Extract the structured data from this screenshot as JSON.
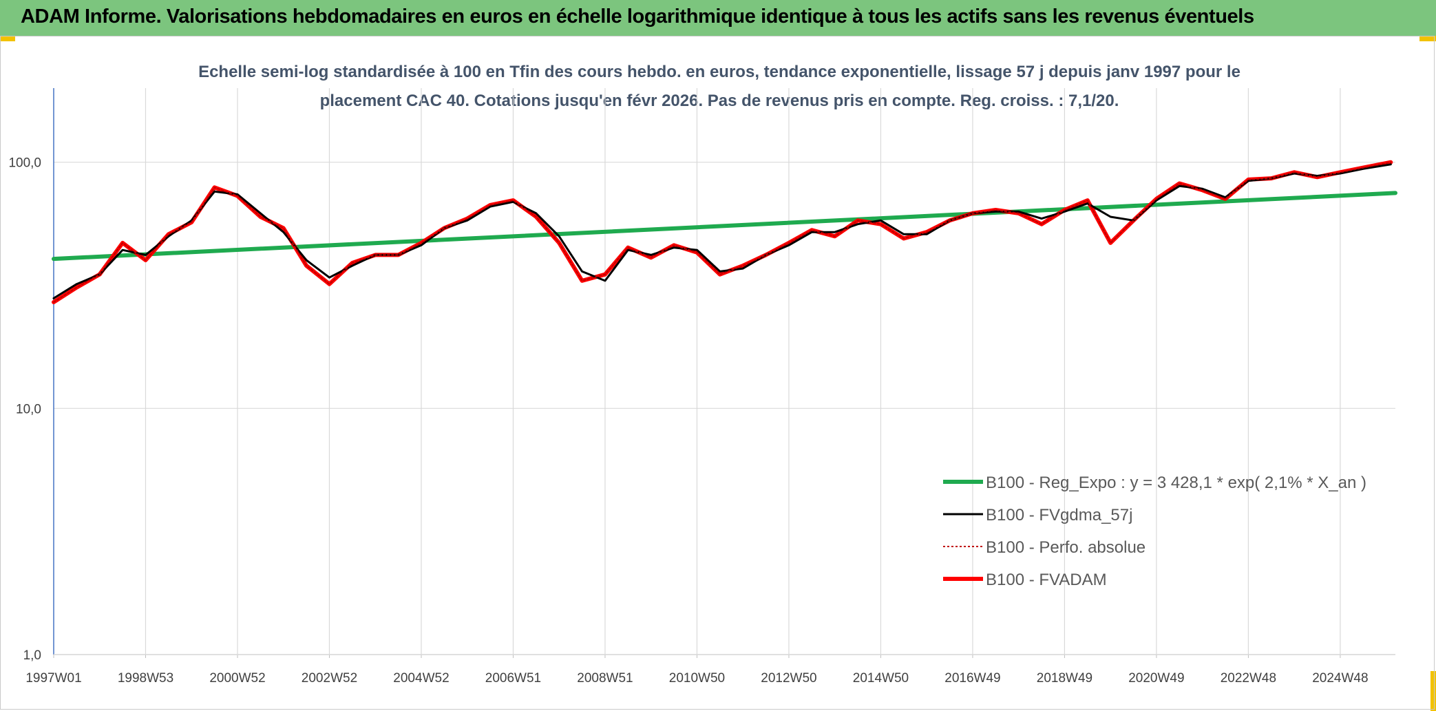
{
  "header": {
    "title": "ADAM Informe. Valorisations hebdomadaires en euros en échelle logarithmique identique à tous les actifs sans les revenus éventuels"
  },
  "chart_data": {
    "type": "line",
    "title_line1": "Echelle semi-log standardisée à 100 en Tfin des cours hebdo. en euros, tendance exponentielle, lissage 57 j depuis janv 1997 pour le",
    "title_line2": "placement CAC 40. Cotations jusqu'en févr 2026. Pas de revenus pris en compte. Reg. croiss. : 7,1/20.",
    "y_scale": "log",
    "ylim": [
      1,
      200
    ],
    "y_ticks": [
      "1,0",
      "10,0",
      "100,0"
    ],
    "x_ticks": [
      "1997W01",
      "1998W53",
      "2000W52",
      "2002W52",
      "2004W52",
      "2006W51",
      "2008W51",
      "2010W50",
      "2012W50",
      "2014W50",
      "2016W49",
      "2018W49",
      "2020W49",
      "2022W48",
      "2024W48"
    ],
    "x_range": [
      1997.0,
      2026.2
    ],
    "grid": true,
    "legend_position": "lower-right",
    "series": [
      {
        "name": "B100 - Reg_Expo : y = 3 428,1 * exp( 2,1% *  X_an )",
        "color": "#1faa4f",
        "style": "solid-thick",
        "x": [
          1997.0,
          2026.2
        ],
        "y": [
          40.5,
          75.0
        ]
      },
      {
        "name": "B100 - FVgdma_57j",
        "color": "#000000",
        "style": "solid",
        "x": [
          1997.0,
          1997.5,
          1998.0,
          1998.5,
          1999.0,
          1999.5,
          2000.0,
          2000.5,
          2001.0,
          2001.5,
          2002.0,
          2002.5,
          2003.0,
          2003.5,
          2004.0,
          2004.5,
          2005.0,
          2005.5,
          2006.0,
          2006.5,
          2007.0,
          2007.5,
          2008.0,
          2008.5,
          2009.0,
          2009.5,
          2010.0,
          2010.5,
          2011.0,
          2011.5,
          2012.0,
          2012.5,
          2013.0,
          2013.5,
          2014.0,
          2014.5,
          2015.0,
          2015.5,
          2016.0,
          2016.5,
          2017.0,
          2017.5,
          2018.0,
          2018.5,
          2019.0,
          2019.5,
          2020.0,
          2020.5,
          2021.0,
          2021.5,
          2022.0,
          2022.5,
          2023.0,
          2023.5,
          2024.0,
          2024.5,
          2025.0,
          2025.5,
          2026.1
        ],
        "y": [
          28,
          32,
          35,
          44,
          42,
          50,
          58,
          76,
          74,
          62,
          52,
          40,
          34,
          38,
          42,
          42,
          46,
          54,
          58,
          66,
          69,
          62,
          50,
          36,
          33,
          44,
          42,
          45,
          44,
          36,
          37,
          42,
          46,
          52,
          52,
          56,
          58,
          51,
          51,
          58,
          62,
          63,
          63,
          59,
          63,
          68,
          60,
          58,
          70,
          80,
          78,
          72,
          84,
          86,
          90,
          88,
          90,
          94,
          98
        ]
      },
      {
        "name": "B100 - Perfo. absolue",
        "color": "#c00000",
        "style": "dotted",
        "x": [
          1997.0,
          1997.5,
          1998.0,
          1998.5,
          1999.0,
          1999.5,
          2000.0,
          2000.5,
          2001.0,
          2001.5,
          2002.0,
          2002.5,
          2003.0,
          2003.5,
          2004.0,
          2004.5,
          2005.0,
          2005.5,
          2006.0,
          2006.5,
          2007.0,
          2007.5,
          2008.0,
          2008.5,
          2009.0,
          2009.5,
          2010.0,
          2010.5,
          2011.0,
          2011.5,
          2012.0,
          2012.5,
          2013.0,
          2013.5,
          2014.0,
          2014.5,
          2015.0,
          2015.5,
          2016.0,
          2016.5,
          2017.0,
          2017.5,
          2018.0,
          2018.5,
          2019.0,
          2019.5,
          2020.0,
          2020.5,
          2021.0,
          2021.5,
          2022.0,
          2022.5,
          2023.0,
          2023.5,
          2024.0,
          2024.5,
          2025.0,
          2025.5,
          2026.1
        ],
        "y": [
          27,
          31,
          35,
          47,
          40,
          51,
          57,
          79,
          73,
          60,
          54,
          38,
          32,
          39,
          42,
          42,
          47,
          54,
          59,
          67,
          70,
          60,
          47,
          33,
          35,
          45,
          41,
          46,
          43,
          35,
          38,
          42,
          47,
          53,
          50,
          58,
          56,
          49,
          52,
          58,
          62,
          64,
          62,
          56,
          64,
          70,
          47,
          58,
          71,
          82,
          77,
          71,
          85,
          86,
          91,
          87,
          91,
          95,
          100
        ]
      },
      {
        "name": "B100 - FVADAM",
        "color": "#ff0000",
        "style": "solid-thick",
        "x": [
          1997.0,
          1997.5,
          1998.0,
          1998.5,
          1999.0,
          1999.5,
          2000.0,
          2000.5,
          2001.0,
          2001.5,
          2002.0,
          2002.5,
          2003.0,
          2003.5,
          2004.0,
          2004.5,
          2005.0,
          2005.5,
          2006.0,
          2006.5,
          2007.0,
          2007.5,
          2008.0,
          2008.5,
          2009.0,
          2009.5,
          2010.0,
          2010.5,
          2011.0,
          2011.5,
          2012.0,
          2012.5,
          2013.0,
          2013.5,
          2014.0,
          2014.5,
          2015.0,
          2015.5,
          2016.0,
          2016.5,
          2017.0,
          2017.5,
          2018.0,
          2018.5,
          2019.0,
          2019.5,
          2020.0,
          2020.5,
          2021.0,
          2021.5,
          2022.0,
          2022.5,
          2023.0,
          2023.5,
          2024.0,
          2024.5,
          2025.0,
          2025.5,
          2026.1
        ],
        "y": [
          27,
          31,
          35,
          47,
          40,
          51,
          57,
          79,
          73,
          60,
          54,
          38,
          32,
          39,
          42,
          42,
          47,
          54,
          59,
          67,
          70,
          60,
          47,
          33,
          35,
          45,
          41,
          46,
          43,
          35,
          38,
          42,
          47,
          53,
          50,
          58,
          56,
          49,
          52,
          58,
          62,
          64,
          62,
          56,
          64,
          70,
          47,
          58,
          71,
          82,
          77,
          71,
          85,
          86,
          91,
          87,
          91,
          95,
          100
        ]
      }
    ]
  }
}
